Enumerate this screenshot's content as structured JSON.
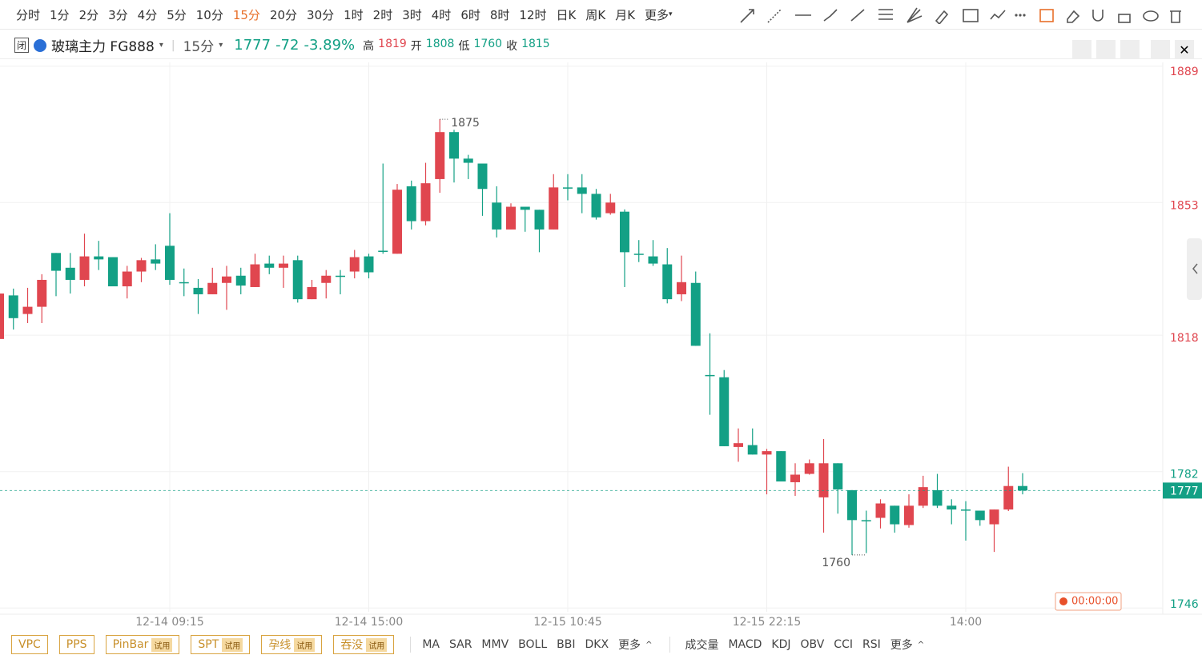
{
  "toolbar": {
    "periods": [
      "分时",
      "1分",
      "2分",
      "3分",
      "4分",
      "5分",
      "10分",
      "15分",
      "20分",
      "30分",
      "1时",
      "2时",
      "3时",
      "4时",
      "6时",
      "8时",
      "12时",
      "日K",
      "周K",
      "月K",
      "更多"
    ],
    "active": 7
  },
  "header": {
    "symbol": "玻璃主力 FG888",
    "period": "15分",
    "change_pct": "-3.89%",
    "stats": [
      {
        "label": "高",
        "value": 1819,
        "color": "#e0464f"
      },
      {
        "label": "开",
        "value": 1808,
        "color": "#13a085"
      },
      {
        "label": "低",
        "value": 1760,
        "color": "#13a085"
      },
      {
        "label": "收",
        "value": 1815,
        "color": "#13a085"
      }
    ]
  },
  "timer": "00:00:00",
  "footer": {
    "patterns": [
      {
        "name": "VPC"
      },
      {
        "name": "PPS"
      },
      {
        "name": "PinBar",
        "tag": "试用"
      },
      {
        "name": "SPT",
        "tag": "试用"
      },
      {
        "name": "孕线",
        "tag": "试用"
      },
      {
        "name": "吞没",
        "tag": "试用"
      }
    ],
    "main_indicators": [
      "MA",
      "SAR",
      "MMV",
      "BOLL",
      "BBI",
      "DKX",
      "更多"
    ],
    "sub_indicators": [
      "成交量",
      "MACD",
      "KDJ",
      "OBV",
      "CCI",
      "RSI",
      "更多"
    ]
  },
  "chart_data": {
    "type": "candlestick",
    "up_color": "#e0464f",
    "down_color": "#13a085",
    "last_price": 1777,
    "change": -72,
    "ylim": [
      1745,
      1890
    ],
    "yticks": [
      1746,
      1782,
      1818,
      1853,
      1889
    ],
    "grid": true,
    "categories": [
      null,
      null,
      null,
      null,
      null,
      null,
      null,
      null,
      null,
      null,
      null,
      null,
      "12-14 09:15",
      null,
      null,
      null,
      null,
      null,
      null,
      null,
      null,
      null,
      null,
      null,
      null,
      null,
      "12-14 15:00",
      null,
      null,
      null,
      null,
      null,
      null,
      null,
      null,
      null,
      null,
      null,
      null,
      null,
      "12-15 10:45",
      null,
      null,
      null,
      null,
      null,
      null,
      null,
      null,
      null,
      null,
      null,
      null,
      null,
      "12-15 22:15",
      null,
      null,
      null,
      null,
      null,
      null,
      null,
      null,
      null,
      null,
      null,
      null,
      null,
      "14:00",
      null,
      null,
      null,
      null
    ],
    "open": [
      1817,
      1828.5,
      1823.6,
      1825.5,
      1839.7,
      1835.8,
      1832.6,
      1838.8,
      1838.6,
      1830.9,
      1834.8,
      1838,
      1841.6,
      1832,
      1830.5,
      1828.8,
      1831.8,
      1833.7,
      1830.7,
      1836.9,
      1835.8,
      1837.8,
      1827.5,
      1831.8,
      1833.7,
      1834.8,
      1838.8,
      1840.3,
      1839.5,
      1857.3,
      1848.1,
      1859.2,
      1871.6,
      1864.6,
      1863.3,
      1853,
      1845.9,
      1851.9,
      1851.1,
      1845.9,
      1857,
      1857,
      1855.3,
      1850.2,
      1850.6,
      1839.5,
      1838.8,
      1836.7,
      1828.8,
      1831.8,
      1807.5,
      1806.9,
      1788.5,
      1789,
      1786.5,
      1787.4,
      1779.2,
      1781.4,
      1775.2,
      1784.2,
      1777.1,
      1769.2,
      1769.8,
      1773,
      1767.9,
      1773,
      1777.1,
      1773,
      1772,
      1771.7,
      1768.1,
      1772,
      1778.2
    ],
    "high": [
      1830,
      1830.3,
      1830.5,
      1834.1,
      1839.7,
      1839.7,
      1844.8,
      1842.9,
      1838.6,
      1836.3,
      1838.4,
      1842,
      1850.2,
      1835.6,
      1832.8,
      1835.8,
      1836.3,
      1835.8,
      1839.5,
      1839,
      1839,
      1839,
      1832.6,
      1835.2,
      1835.2,
      1840.5,
      1839.5,
      1863.3,
      1857.9,
      1858.8,
      1863.5,
      1875,
      1872.2,
      1865.6,
      1863.3,
      1857.3,
      1852.8,
      1851.9,
      1851.1,
      1860.5,
      1860.5,
      1860.5,
      1856.6,
      1855.3,
      1851.2,
      1843.1,
      1843.1,
      1841,
      1839,
      1834.8,
      1818.5,
      1808.8,
      1793.4,
      1793.4,
      1788,
      1787.4,
      1784.2,
      1785.2,
      1790.6,
      1784.2,
      1777.1,
      1771.7,
      1774.7,
      1773,
      1776,
      1780.9,
      1781.4,
      1774.7,
      1774.2,
      1771.7,
      1772,
      1783.3,
      1781.6
    ],
    "low": [
      1817,
      1819.5,
      1821.2,
      1821.2,
      1828.3,
      1829,
      1830.9,
      1835.2,
      1830.9,
      1827.7,
      1832,
      1835.2,
      1831.3,
      1828.3,
      1823.6,
      1828.8,
      1824.7,
      1828.8,
      1830.7,
      1834.1,
      1830.5,
      1826.6,
      1827.5,
      1827.7,
      1828.8,
      1833,
      1833,
      1839.5,
      1839.5,
      1845.9,
      1847,
      1855.6,
      1858.3,
      1859.2,
      1849.5,
      1843.8,
      1845.9,
      1845.3,
      1839.9,
      1845.9,
      1853.6,
      1850.2,
      1848.5,
      1849.8,
      1830.7,
      1837.3,
      1836.3,
      1826.4,
      1827,
      1815.2,
      1797,
      1788.7,
      1784.6,
      1786.5,
      1776,
      1779.4,
      1775.6,
      1781.2,
      1765.9,
      1770.9,
      1760,
      1760.5,
      1767,
      1765.9,
      1767.2,
      1772.4,
      1772.4,
      1768.1,
      1763.8,
      1767.7,
      1760.8,
      1771.6,
      1776
    ],
    "close": [
      1829,
      1822.5,
      1825.5,
      1832.6,
      1835,
      1832.6,
      1838.8,
      1838,
      1830.9,
      1834.8,
      1837.8,
      1836.9,
      1832.6,
      1831.8,
      1828.8,
      1831.8,
      1833.5,
      1831.1,
      1836.7,
      1835.8,
      1836.9,
      1827.5,
      1830.7,
      1833.7,
      1833.7,
      1838.6,
      1834.6,
      1840.3,
      1856.4,
      1848.1,
      1858.1,
      1871.6,
      1864.6,
      1863.5,
      1856.6,
      1845.9,
      1851.9,
      1851.1,
      1845.9,
      1857,
      1857,
      1855.3,
      1849.1,
      1853,
      1839.9,
      1839.5,
      1836.9,
      1827.5,
      1832,
      1815.2,
      1807.5,
      1788.7,
      1789.5,
      1786.5,
      1787.4,
      1779.4,
      1781.2,
      1784.2,
      1784.2,
      1777.3,
      1769.2,
      1769.2,
      1773.6,
      1768.1,
      1773,
      1777.9,
      1773,
      1772,
      1772,
      1769.2,
      1772,
      1778.2,
      1777
    ],
    "max_marker": 31,
    "min_marker": 60
  }
}
